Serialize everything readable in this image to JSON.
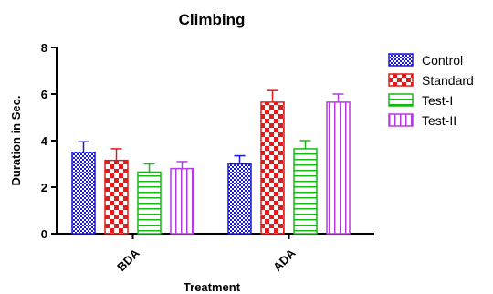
{
  "chart_data": {
    "type": "bar",
    "title": "Climbing",
    "xlabel": "Treatment",
    "ylabel": "Duration in Sec.",
    "categories": [
      "BDA",
      "ADA"
    ],
    "ylim": [
      0,
      8
    ],
    "yticks": [
      0,
      2,
      4,
      6,
      8
    ],
    "grid": false,
    "legend_position": "right",
    "series": [
      {
        "name": "Control",
        "values": [
          3.5,
          3.0
        ],
        "errors": [
          0.45,
          0.35
        ],
        "color": "#1a1ad6",
        "pattern": "checker"
      },
      {
        "name": "Standard",
        "values": [
          3.15,
          5.65
        ],
        "errors": [
          0.5,
          0.5
        ],
        "color": "#e01b1b",
        "pattern": "large-checker"
      },
      {
        "name": "Test-I",
        "values": [
          2.65,
          3.65
        ],
        "errors": [
          0.35,
          0.35
        ],
        "color": "#19b819",
        "pattern": "horizontal-lines"
      },
      {
        "name": "Test-II",
        "values": [
          2.8,
          5.65
        ],
        "errors": [
          0.3,
          0.35
        ],
        "color": "#b53ce0",
        "pattern": "vertical-lines"
      }
    ]
  }
}
